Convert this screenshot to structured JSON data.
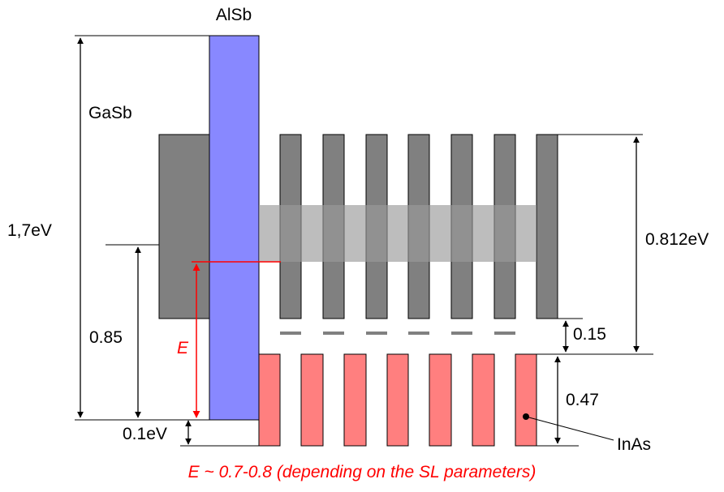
{
  "labels": {
    "alsb": "AlSb",
    "gasb": "GaSb",
    "total_gap": "1,7eV",
    "offset_085": "0.85",
    "offset_01": "0.1eV",
    "energy": "E",
    "sl_gap": "0.812eV",
    "offset_015": "0.15",
    "offset_047": "0.47",
    "inas": "InAs"
  },
  "caption": "E ~ 0.7-0.8 (depending on the SL parameters)",
  "colors": {
    "alsb": "#8888ff",
    "gasb": "#808080",
    "inas": "#ff7f7f",
    "miniband": "#bbbbbb",
    "accent": "#ff0000"
  }
}
